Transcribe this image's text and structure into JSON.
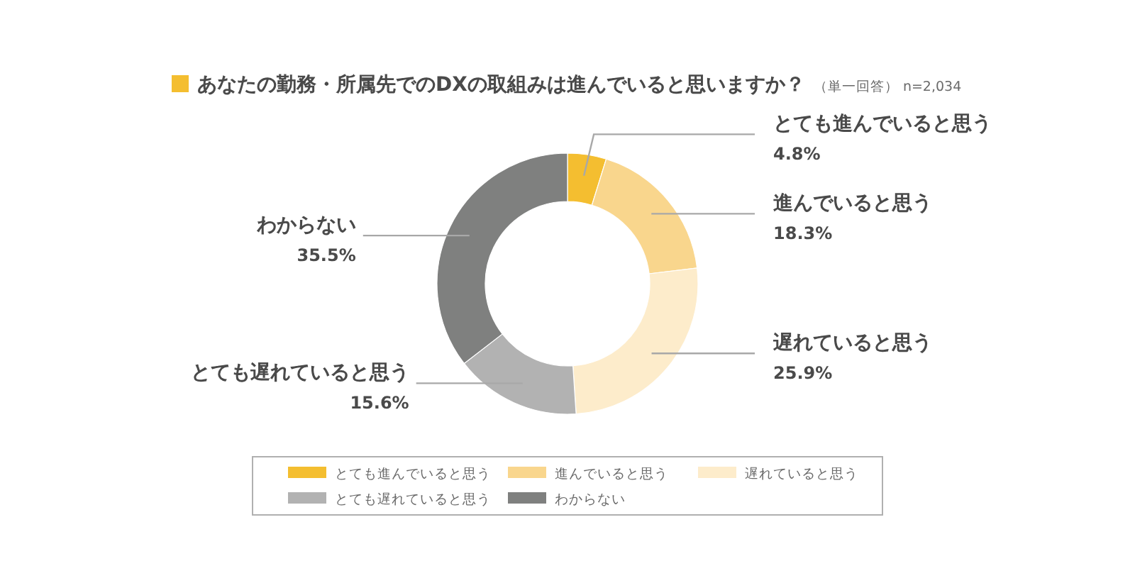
{
  "chart_data": {
    "type": "donut",
    "title": "あなたの勤務・所属先でのDXの取組みは進んでいると思いますか？",
    "subtitle": "（単一回答） n=2,034",
    "categories": [
      "とても進んでいると思う",
      "進んでいると思う",
      "遅れていると思う",
      "とても遅れていると思う",
      "わからない"
    ],
    "values": [
      4.8,
      18.3,
      25.9,
      15.6,
      35.5
    ],
    "colors": [
      "#f4be30",
      "#f9d68d",
      "#fdeccb",
      "#b2b2b2",
      "#7f807f"
    ],
    "value_labels": [
      "4.8%",
      "18.3%",
      "25.9%",
      "15.6%",
      "35.5%"
    ],
    "legend": "bottom"
  }
}
